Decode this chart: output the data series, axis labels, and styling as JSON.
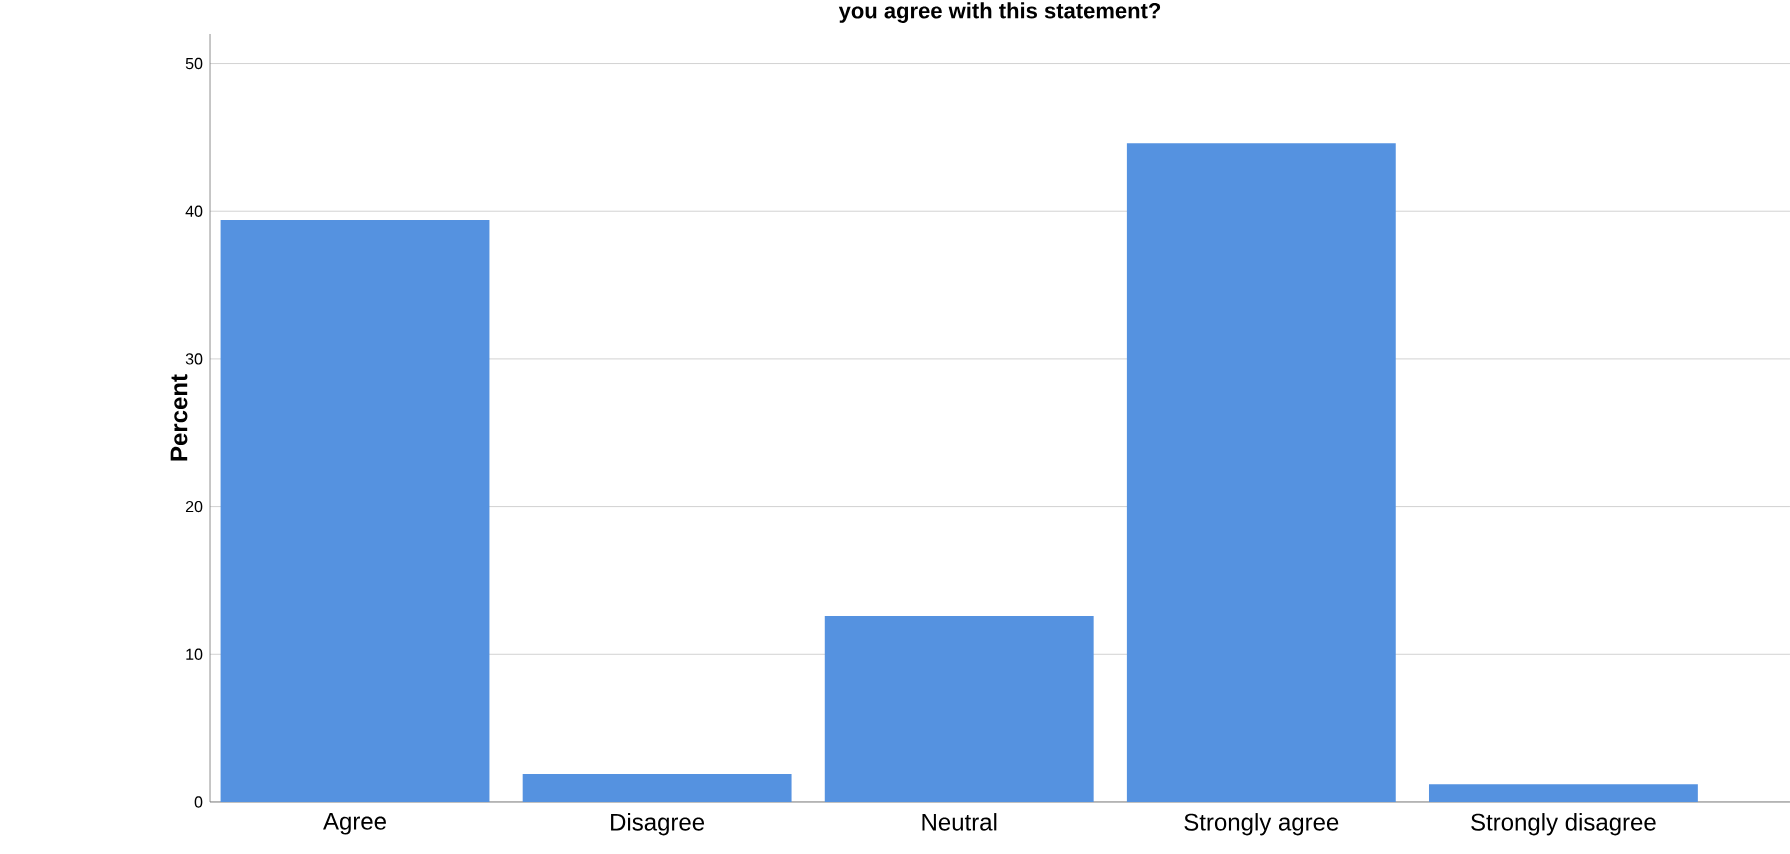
{
  "chart_data": {
    "type": "bar",
    "title": "you agree with this statement?",
    "ylabel": "Percent",
    "categories": [
      "Agree",
      "Disagree",
      "Neutral",
      "Strongly agree",
      "Strongly disagree"
    ],
    "values": [
      39.4,
      1.9,
      12.6,
      44.6,
      1.2
    ],
    "color": "#5592e0",
    "ylim": [
      0,
      52
    ],
    "yticks": [
      0,
      10,
      20,
      30,
      40,
      50
    ],
    "grid": "y"
  }
}
